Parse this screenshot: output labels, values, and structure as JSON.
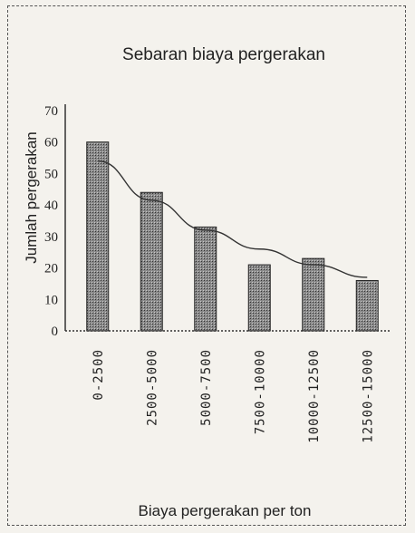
{
  "chart_data": {
    "type": "bar",
    "title": "Sebaran biaya pergerakan",
    "xlabel": "Biaya pergerakan per ton",
    "ylabel": "Jumlah pergerakan",
    "categories": [
      "0-2500",
      "2500-5000",
      "5000-7500",
      "7500-10000",
      "10000-12500",
      "12500-15000"
    ],
    "values": [
      60,
      44,
      33,
      21,
      23,
      16
    ],
    "trendline": [
      54,
      41.5,
      32,
      26,
      21,
      17
    ],
    "ylim": [
      0,
      70
    ],
    "yticks": [
      "0",
      "10",
      "20",
      "30",
      "40",
      "50",
      "60",
      "70"
    ],
    "grid": false,
    "legend": "none",
    "colors": {
      "bar": "#6e6e6e",
      "bar_edge": "#222222",
      "line": "#333333"
    }
  }
}
